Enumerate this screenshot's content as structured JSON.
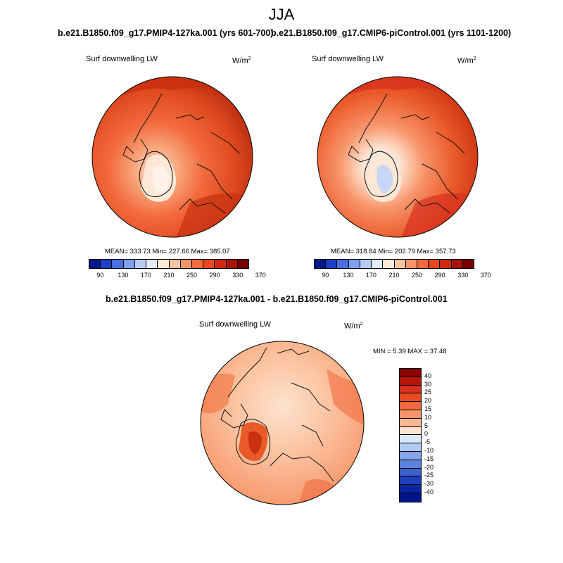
{
  "season": "JJA",
  "panels": {
    "p1": {
      "title": "b.e21.B1850.f09_g17.PMIP4-127ka.001 (yrs 601-700)",
      "variable": "Surf downwelling LW",
      "units": "W/m",
      "units_exp": "2",
      "stats": "MEAN= 333.73  Min= 227.66  Max= 385.07"
    },
    "p2": {
      "title": "b.e21.B1850.f09_g17.CMIP6-piControl.001 (yrs 1101-1200)",
      "variable": "Surf downwelling LW",
      "units": "W/m",
      "units_exp": "2",
      "stats": "MEAN= 318.84  Min= 202.79  Max= 357.73"
    },
    "diff": {
      "title": "b.e21.B1850.f09_g17.PMIP4-127ka.001 - b.e21.B1850.f09_g17.CMIP6-piControl.001",
      "variable": "Surf downwelling LW",
      "units": "W/m",
      "units_exp": "2",
      "stats": "MIN =   5.39 MAX =  37.48"
    }
  },
  "colorbar_abs": {
    "ticks": [
      "90",
      "130",
      "170",
      "210",
      "250",
      "290",
      "330",
      "370"
    ],
    "colors": [
      "#001a8c",
      "#1e3fc7",
      "#4a6ee0",
      "#7f9ff0",
      "#b7cbf7",
      "#e3ecfb",
      "#fde8d6",
      "#fbc4a2",
      "#f8946a",
      "#f26a3d",
      "#e8471f",
      "#cf2a0f",
      "#a8150a",
      "#7a0000"
    ]
  },
  "colorbar_diff": {
    "ticks": [
      "40",
      "30",
      "25",
      "20",
      "15",
      "10",
      "5",
      "0",
      "-5",
      "-10",
      "-15",
      "-20",
      "-25",
      "-30",
      "-40"
    ],
    "colors": [
      "#8c0000",
      "#b8130a",
      "#d7301f",
      "#ea4a22",
      "#f26a3d",
      "#f8946a",
      "#fbb896",
      "#fde3cf",
      "#dbe7fa",
      "#b3c8f3",
      "#86a5ea",
      "#5c82de",
      "#3a5fcf",
      "#1e3fbb",
      "#0c24a0",
      "#001488"
    ]
  }
}
